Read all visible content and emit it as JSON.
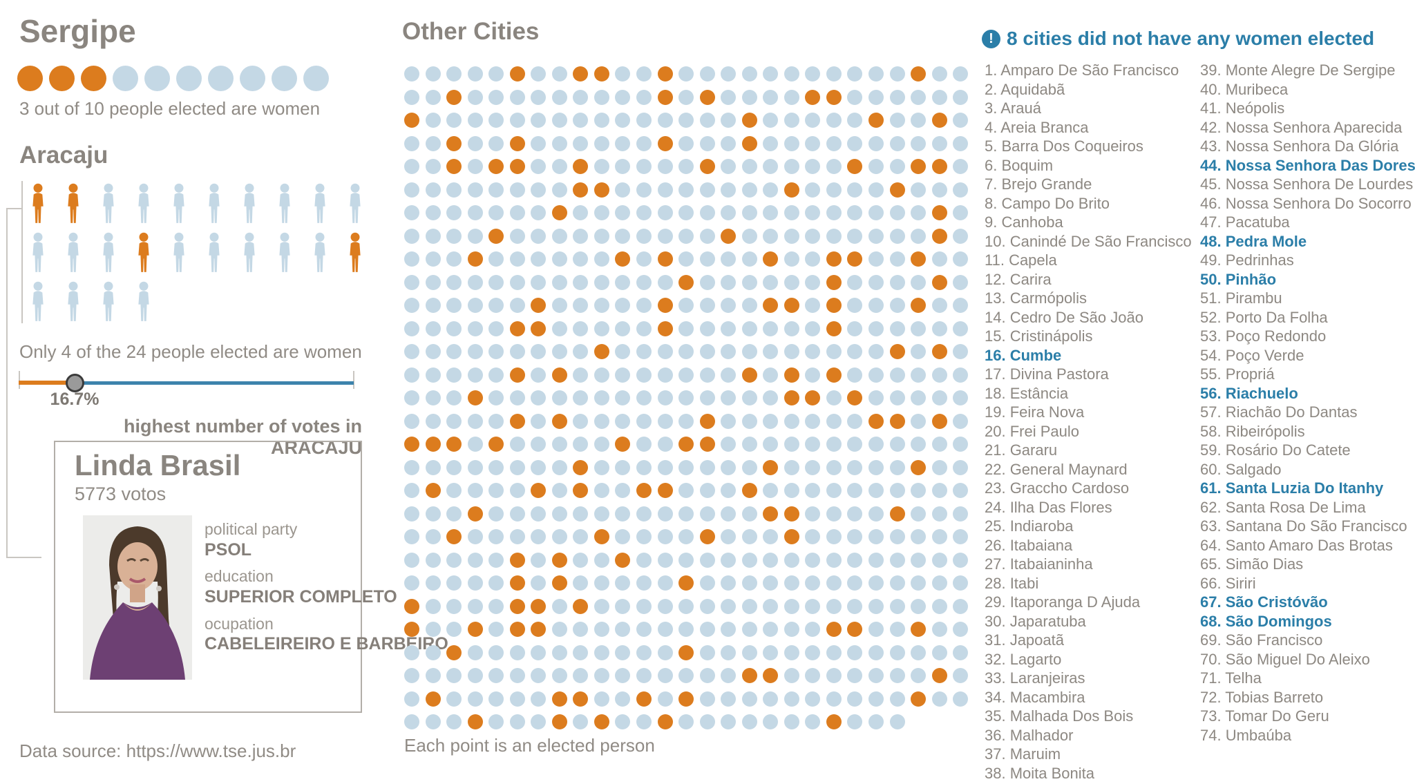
{
  "state": {
    "title": "Sergipe",
    "caption": "3 out of 10 people elected are women"
  },
  "aracaju": {
    "title": "Aracaju",
    "caption": "Only 4 of the 24 people elected are women",
    "slider": {
      "percent": 16.7,
      "percent_label": "16.7%"
    }
  },
  "card": {
    "header": "highest number of votes in ARACAJU",
    "name": "Linda Brasil",
    "votes": "5773 votos",
    "fields": [
      {
        "label": "political party",
        "value": "PSOL"
      },
      {
        "label": "education",
        "value": "SUPERIOR COMPLETO"
      },
      {
        "label": "ocupation",
        "value": "CABELEIREIRO E BARBEIRO"
      }
    ]
  },
  "footer": {
    "data_source": "Data source: https://www.tse.jus.br"
  },
  "colors": {
    "women": "#dc7c1e",
    "men": "#c4d8e5",
    "slider_men": "#3d83ac",
    "highlight_blue": "#2b7ea8",
    "text_gray": "#8a857f"
  },
  "cities_panel": {
    "header": "8 cities did not have any women elected",
    "info_icon": "!",
    "highlighted_numbers": [
      16,
      44,
      48,
      50,
      56,
      61,
      67,
      68
    ],
    "columns": [
      [
        {
          "n": 1,
          "name": "Amparo De São Francisco",
          "hl": false
        },
        {
          "n": 2,
          "name": "Aquidabã",
          "hl": false
        },
        {
          "n": 3,
          "name": "Arauá",
          "hl": false
        },
        {
          "n": 4,
          "name": "Areia Branca",
          "hl": false
        },
        {
          "n": 5,
          "name": "Barra Dos Coqueiros",
          "hl": false
        },
        {
          "n": 6,
          "name": "Boquim",
          "hl": false
        },
        {
          "n": 7,
          "name": "Brejo Grande",
          "hl": false
        },
        {
          "n": 8,
          "name": "Campo Do Brito",
          "hl": false
        },
        {
          "n": 9,
          "name": "Canhoba",
          "hl": false
        },
        {
          "n": 10,
          "name": "Canindé De São Francisco",
          "hl": false
        },
        {
          "n": 11,
          "name": "Capela",
          "hl": false
        },
        {
          "n": 12,
          "name": "Carira",
          "hl": false
        },
        {
          "n": 13,
          "name": "Carmópolis",
          "hl": false
        },
        {
          "n": 14,
          "name": "Cedro De São João",
          "hl": false
        },
        {
          "n": 15,
          "name": "Cristinápolis",
          "hl": false
        },
        {
          "n": 16,
          "name": "Cumbe",
          "hl": true
        },
        {
          "n": 17,
          "name": "Divina Pastora",
          "hl": false
        },
        {
          "n": 18,
          "name": "Estância",
          "hl": false
        },
        {
          "n": 19,
          "name": "Feira Nova",
          "hl": false
        },
        {
          "n": 20,
          "name": "Frei Paulo",
          "hl": false
        },
        {
          "n": 21,
          "name": "Gararu",
          "hl": false
        },
        {
          "n": 22,
          "name": "General Maynard",
          "hl": false
        },
        {
          "n": 23,
          "name": "Graccho Cardoso",
          "hl": false
        },
        {
          "n": 24,
          "name": "Ilha Das Flores",
          "hl": false
        },
        {
          "n": 25,
          "name": "Indiaroba",
          "hl": false
        },
        {
          "n": 26,
          "name": "Itabaiana",
          "hl": false
        },
        {
          "n": 27,
          "name": "Itabaianinha",
          "hl": false
        },
        {
          "n": 28,
          "name": "Itabi",
          "hl": false
        },
        {
          "n": 29,
          "name": "Itaporanga D Ajuda",
          "hl": false
        },
        {
          "n": 30,
          "name": "Japaratuba",
          "hl": false
        },
        {
          "n": 31,
          "name": "Japoatã",
          "hl": false
        },
        {
          "n": 32,
          "name": "Lagarto",
          "hl": false
        },
        {
          "n": 33,
          "name": "Laranjeiras",
          "hl": false
        },
        {
          "n": 34,
          "name": "Macambira",
          "hl": false
        },
        {
          "n": 35,
          "name": "Malhada Dos Bois",
          "hl": false
        },
        {
          "n": 36,
          "name": "Malhador",
          "hl": false
        },
        {
          "n": 37,
          "name": "Maruim",
          "hl": false
        },
        {
          "n": 38,
          "name": "Moita Bonita",
          "hl": false
        }
      ],
      [
        {
          "n": 39,
          "name": "Monte Alegre De Sergipe",
          "hl": false
        },
        {
          "n": 40,
          "name": "Muribeca",
          "hl": false
        },
        {
          "n": 41,
          "name": "Neópolis",
          "hl": false
        },
        {
          "n": 42,
          "name": "Nossa Senhora Aparecida",
          "hl": false
        },
        {
          "n": 43,
          "name": "Nossa Senhora Da Glória",
          "hl": false
        },
        {
          "n": 44,
          "name": "Nossa Senhora Das Dores",
          "hl": true
        },
        {
          "n": 45,
          "name": "Nossa Senhora De Lourdes",
          "hl": false
        },
        {
          "n": 46,
          "name": "Nossa Senhora Do Socorro",
          "hl": false
        },
        {
          "n": 47,
          "name": "Pacatuba",
          "hl": false
        },
        {
          "n": 48,
          "name": "Pedra Mole",
          "hl": true
        },
        {
          "n": 49,
          "name": "Pedrinhas",
          "hl": false
        },
        {
          "n": 50,
          "name": "Pinhão",
          "hl": true
        },
        {
          "n": 51,
          "name": "Pirambu",
          "hl": false
        },
        {
          "n": 52,
          "name": "Porto Da Folha",
          "hl": false
        },
        {
          "n": 53,
          "name": "Poço Redondo",
          "hl": false
        },
        {
          "n": 54,
          "name": "Poço Verde",
          "hl": false
        },
        {
          "n": 55,
          "name": "Propriá",
          "hl": false
        },
        {
          "n": 56,
          "name": "Riachuelo",
          "hl": true
        },
        {
          "n": 57,
          "name": "Riachão Do Dantas",
          "hl": false
        },
        {
          "n": 58,
          "name": "Ribeirópolis",
          "hl": false
        },
        {
          "n": 59,
          "name": "Rosário Do Catete",
          "hl": false
        },
        {
          "n": 60,
          "name": "Salgado",
          "hl": false
        },
        {
          "n": 61,
          "name": "Santa Luzia Do Itanhy",
          "hl": true
        },
        {
          "n": 62,
          "name": "Santa Rosa De Lima",
          "hl": false
        },
        {
          "n": 63,
          "name": "Santana Do São Francisco",
          "hl": false
        },
        {
          "n": 64,
          "name": "Santo Amaro Das Brotas",
          "hl": false
        },
        {
          "n": 65,
          "name": "Simão Dias",
          "hl": false
        },
        {
          "n": 66,
          "name": "Siriri",
          "hl": false
        },
        {
          "n": 67,
          "name": "São Cristóvão",
          "hl": true
        },
        {
          "n": 68,
          "name": "São Domingos",
          "hl": true
        },
        {
          "n": 69,
          "name": "São Francisco",
          "hl": false
        },
        {
          "n": 70,
          "name": "São Miguel Do Aleixo",
          "hl": false
        },
        {
          "n": 71,
          "name": "Telha",
          "hl": false
        },
        {
          "n": 72,
          "name": "Tobias Barreto",
          "hl": false
        },
        {
          "n": 73,
          "name": "Tomar Do Geru",
          "hl": false
        },
        {
          "n": 74,
          "name": "Umbaúba",
          "hl": false
        }
      ]
    ]
  },
  "chart_data": [
    {
      "type": "waffle",
      "title": "Sergipe",
      "caption": "3 out of 10 people elected are women",
      "total": 10,
      "women": 3,
      "women_color": "#dc7c1e",
      "men_color": "#c4d8e5"
    },
    {
      "type": "pictogram",
      "title": "Aracaju",
      "caption": "Only 4 of the 24 people elected are women",
      "total": 24,
      "women": 4,
      "women_percent": 16.7,
      "percent_label": "16.7%",
      "rows": [
        {
          "count": 10,
          "women": [
            1,
            2
          ]
        },
        {
          "count": 10,
          "women": [
            4,
            10
          ]
        },
        {
          "count": 4,
          "women": []
        }
      ]
    },
    {
      "type": "dot-matrix",
      "title": "Other Cities",
      "caption": "Each point is an elected person",
      "cols": 27,
      "rows": 29,
      "last_row_cols": 24,
      "total_points": 780,
      "women_points": 130,
      "orange_by_row": [
        [
          6,
          9,
          10,
          13,
          25
        ],
        [
          3,
          13,
          15,
          20,
          21
        ],
        [
          1,
          17,
          23,
          26
        ],
        [
          3,
          6,
          13,
          17
        ],
        [
          3,
          5,
          6,
          9,
          15,
          22,
          25,
          26
        ],
        [
          9,
          10,
          19,
          24
        ],
        [
          8,
          26
        ],
        [
          5,
          16,
          26
        ],
        [
          4,
          11,
          13,
          18,
          21,
          22,
          25
        ],
        [
          14,
          21,
          26
        ],
        [
          7,
          13,
          18,
          19,
          21,
          25
        ],
        [
          6,
          7,
          13,
          21
        ],
        [
          10,
          24,
          26
        ],
        [
          6,
          8,
          17,
          19,
          21
        ],
        [
          4,
          19,
          20,
          22
        ],
        [
          6,
          8,
          15,
          23,
          24,
          26
        ],
        [
          1,
          2,
          3,
          5,
          11,
          14,
          15
        ],
        [
          9,
          18,
          25
        ],
        [
          2,
          7,
          9,
          12,
          13,
          17
        ],
        [
          4,
          18,
          19,
          24
        ],
        [
          3,
          10,
          15,
          19
        ],
        [
          6,
          8,
          11
        ],
        [
          6,
          8,
          14
        ],
        [
          1,
          6,
          7,
          9
        ],
        [
          1,
          4,
          6,
          7,
          21,
          22,
          25
        ],
        [
          3,
          14
        ],
        [
          17,
          18,
          26
        ],
        [
          2,
          8,
          9,
          12,
          14,
          25
        ],
        [
          4,
          8,
          10,
          13,
          21
        ]
      ]
    }
  ]
}
